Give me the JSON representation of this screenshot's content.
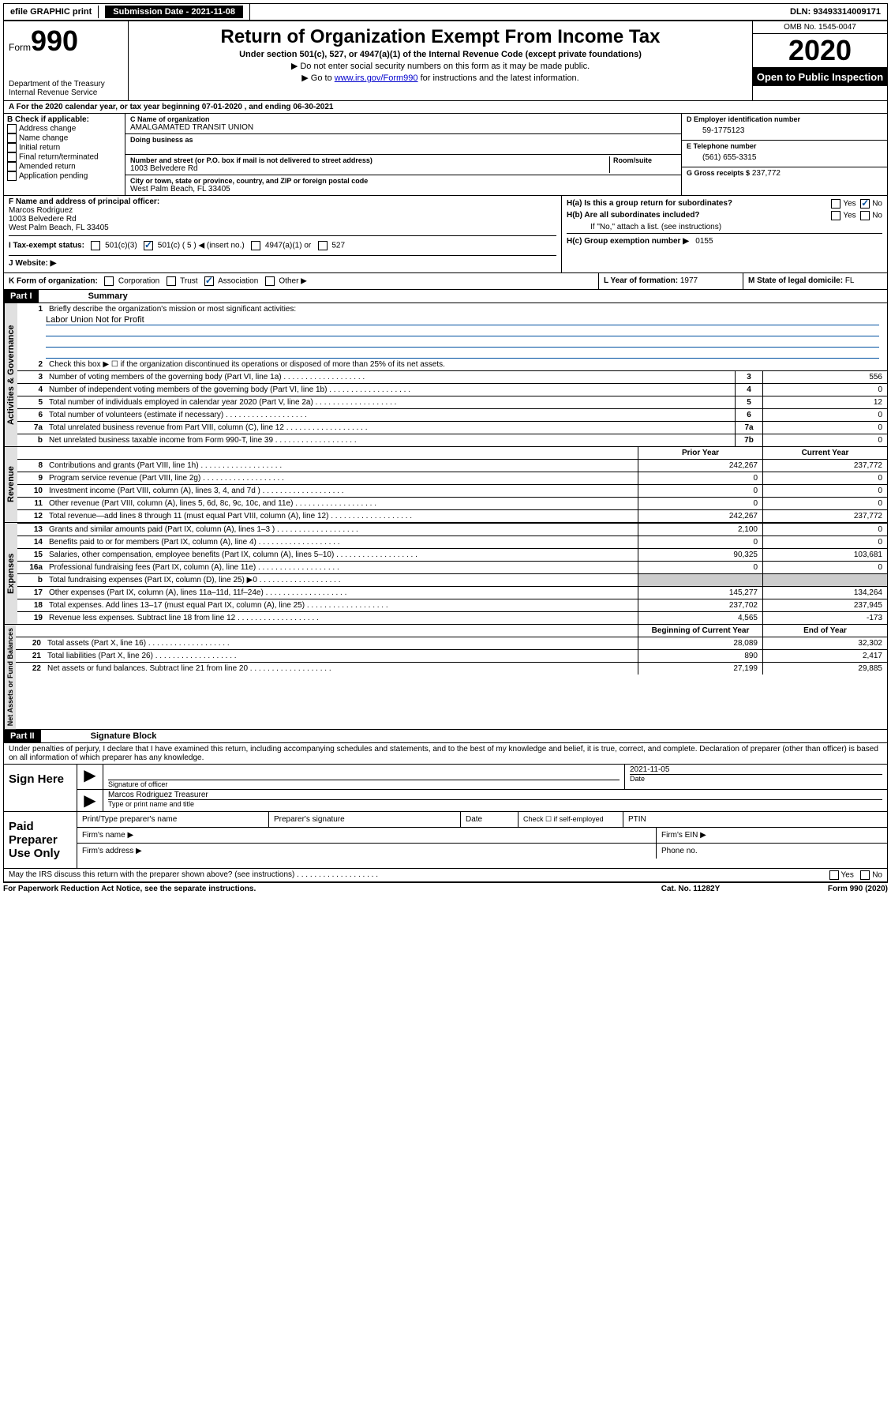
{
  "topbar": {
    "efile": "efile GRAPHIC print",
    "submission_label": "Submission Date",
    "submission_date": "2021-11-08",
    "dln_label": "DLN:",
    "dln": "93493314009171"
  },
  "header": {
    "form_word": "Form",
    "form_num": "990",
    "dept": "Department of the Treasury",
    "irs": "Internal Revenue Service",
    "title": "Return of Organization Exempt From Income Tax",
    "sub": "Under section 501(c), 527, or 4947(a)(1) of the Internal Revenue Code (except private foundations)",
    "line1": "▶ Do not enter social security numbers on this form as it may be made public.",
    "line2_pre": "▶ Go to ",
    "line2_link": "www.irs.gov/Form990",
    "line2_post": " for instructions and the latest information.",
    "omb": "OMB No. 1545-0047",
    "year": "2020",
    "inspection": "Open to Public Inspection"
  },
  "rowA": "A For the 2020 calendar year, or tax year beginning 07-01-2020   , and ending 06-30-2021",
  "colB": {
    "title": "B Check if applicable:",
    "items": [
      "Address change",
      "Name change",
      "Initial return",
      "Final return/terminated",
      "Amended return",
      "Application pending"
    ]
  },
  "colC": {
    "name_label": "C Name of organization",
    "name": "AMALGAMATED TRANSIT UNION",
    "dba_label": "Doing business as",
    "street_label": "Number and street (or P.O. box if mail is not delivered to street address)",
    "room_label": "Room/suite",
    "street": "1003 Belvedere Rd",
    "city_label": "City or town, state or province, country, and ZIP or foreign postal code",
    "city": "West Palm Beach, FL  33405"
  },
  "colD": {
    "ein_label": "D Employer identification number",
    "ein": "59-1775123",
    "phone_label": "E Telephone number",
    "phone": "(561) 655-3315",
    "gross_label": "G Gross receipts $",
    "gross": "237,772"
  },
  "sectionF": {
    "f_label": "F Name and address of principal officer:",
    "f_name": "Marcos Rodriguez",
    "f_street": "1003 Belvedere Rd",
    "f_city": "West Palm Beach, FL  33405",
    "i_label": "I Tax-exempt status:",
    "i_opts": [
      "501(c)(3)",
      "501(c) ( 5 ) ◀ (insert no.)",
      "4947(a)(1) or",
      "527"
    ],
    "j_label": "J  Website: ▶"
  },
  "sectionH": {
    "ha": "H(a)  Is this a group return for subordinates?",
    "hb": "H(b)  Are all subordinates included?",
    "hb_note": "If \"No,\" attach a list. (see instructions)",
    "hc": "H(c)  Group exemption number ▶",
    "hc_val": "0155",
    "yes": "Yes",
    "no": "No"
  },
  "rowK": {
    "k_label": "K Form of organization:",
    "k_opts": [
      "Corporation",
      "Trust",
      "Association",
      "Other ▶"
    ],
    "l_label": "L Year of formation:",
    "l_val": "1977",
    "m_label": "M State of legal domicile:",
    "m_val": "FL"
  },
  "part1": {
    "header": "Part I",
    "title": "Summary",
    "q1": "Briefly describe the organization's mission or most significant activities:",
    "mission": "Labor Union Not for Profit",
    "q2": "Check this box ▶ ☐  if the organization discontinued its operations or disposed of more than 25% of its net assets.",
    "gov_tab": "Activities & Governance",
    "rev_tab": "Revenue",
    "exp_tab": "Expenses",
    "net_tab": "Net Assets or Fund Balances",
    "prior": "Prior Year",
    "current": "Current Year",
    "boy": "Beginning of Current Year",
    "eoy": "End of Year",
    "lines_gov": [
      {
        "n": "3",
        "d": "Number of voting members of the governing body (Part VI, line 1a)",
        "box": "3",
        "v": "556"
      },
      {
        "n": "4",
        "d": "Number of independent voting members of the governing body (Part VI, line 1b)",
        "box": "4",
        "v": "0"
      },
      {
        "n": "5",
        "d": "Total number of individuals employed in calendar year 2020 (Part V, line 2a)",
        "box": "5",
        "v": "12"
      },
      {
        "n": "6",
        "d": "Total number of volunteers (estimate if necessary)",
        "box": "6",
        "v": "0"
      },
      {
        "n": "7a",
        "d": "Total unrelated business revenue from Part VIII, column (C), line 12",
        "box": "7a",
        "v": "0"
      },
      {
        "n": "b",
        "d": "Net unrelated business taxable income from Form 990-T, line 39",
        "box": "7b",
        "v": "0"
      }
    ],
    "lines_rev": [
      {
        "n": "8",
        "d": "Contributions and grants (Part VIII, line 1h)",
        "p": "242,267",
        "c": "237,772"
      },
      {
        "n": "9",
        "d": "Program service revenue (Part VIII, line 2g)",
        "p": "0",
        "c": "0"
      },
      {
        "n": "10",
        "d": "Investment income (Part VIII, column (A), lines 3, 4, and 7d )",
        "p": "0",
        "c": "0"
      },
      {
        "n": "11",
        "d": "Other revenue (Part VIII, column (A), lines 5, 6d, 8c, 9c, 10c, and 11e)",
        "p": "0",
        "c": "0"
      },
      {
        "n": "12",
        "d": "Total revenue—add lines 8 through 11 (must equal Part VIII, column (A), line 12)",
        "p": "242,267",
        "c": "237,772"
      }
    ],
    "lines_exp": [
      {
        "n": "13",
        "d": "Grants and similar amounts paid (Part IX, column (A), lines 1–3 )",
        "p": "2,100",
        "c": "0"
      },
      {
        "n": "14",
        "d": "Benefits paid to or for members (Part IX, column (A), line 4)",
        "p": "0",
        "c": "0"
      },
      {
        "n": "15",
        "d": "Salaries, other compensation, employee benefits (Part IX, column (A), lines 5–10)",
        "p": "90,325",
        "c": "103,681"
      },
      {
        "n": "16a",
        "d": "Professional fundraising fees (Part IX, column (A), line 11e)",
        "p": "0",
        "c": "0"
      },
      {
        "n": "b",
        "d": "Total fundraising expenses (Part IX, column (D), line 25) ▶0",
        "p": "shade",
        "c": "shade"
      },
      {
        "n": "17",
        "d": "Other expenses (Part IX, column (A), lines 11a–11d, 11f–24e)",
        "p": "145,277",
        "c": "134,264"
      },
      {
        "n": "18",
        "d": "Total expenses. Add lines 13–17 (must equal Part IX, column (A), line 25)",
        "p": "237,702",
        "c": "237,945"
      },
      {
        "n": "19",
        "d": "Revenue less expenses. Subtract line 18 from line 12",
        "p": "4,565",
        "c": "-173"
      }
    ],
    "lines_net": [
      {
        "n": "20",
        "d": "Total assets (Part X, line 16)",
        "p": "28,089",
        "c": "32,302"
      },
      {
        "n": "21",
        "d": "Total liabilities (Part X, line 26)",
        "p": "890",
        "c": "2,417"
      },
      {
        "n": "22",
        "d": "Net assets or fund balances. Subtract line 21 from line 20",
        "p": "27,199",
        "c": "29,885"
      }
    ]
  },
  "part2": {
    "header": "Part II",
    "title": "Signature Block",
    "jurat": "Under penalties of perjury, I declare that I have examined this return, including accompanying schedules and statements, and to the best of my knowledge and belief, it is true, correct, and complete. Declaration of preparer (other than officer) is based on all information of which preparer has any knowledge.",
    "sign_here": "Sign Here",
    "sig_officer": "Signature of officer",
    "date_label": "Date",
    "sig_date": "2021-11-05",
    "officer_name": "Marcos Rodriguez Treasurer",
    "type_name": "Type or print name and title",
    "paid": "Paid Preparer Use Only",
    "print_name": "Print/Type preparer's name",
    "prep_sig": "Preparer's signature",
    "check_self": "Check ☐  if self-employed",
    "ptin": "PTIN",
    "firm_name": "Firm's name   ▶",
    "firm_ein": "Firm's EIN ▶",
    "firm_addr": "Firm's address ▶",
    "phone": "Phone no.",
    "discuss": "May the IRS discuss this return with the preparer shown above? (see instructions)"
  },
  "footer": {
    "pra": "For Paperwork Reduction Act Notice, see the separate instructions.",
    "cat": "Cat. No. 11282Y",
    "form": "Form 990 (2020)"
  }
}
